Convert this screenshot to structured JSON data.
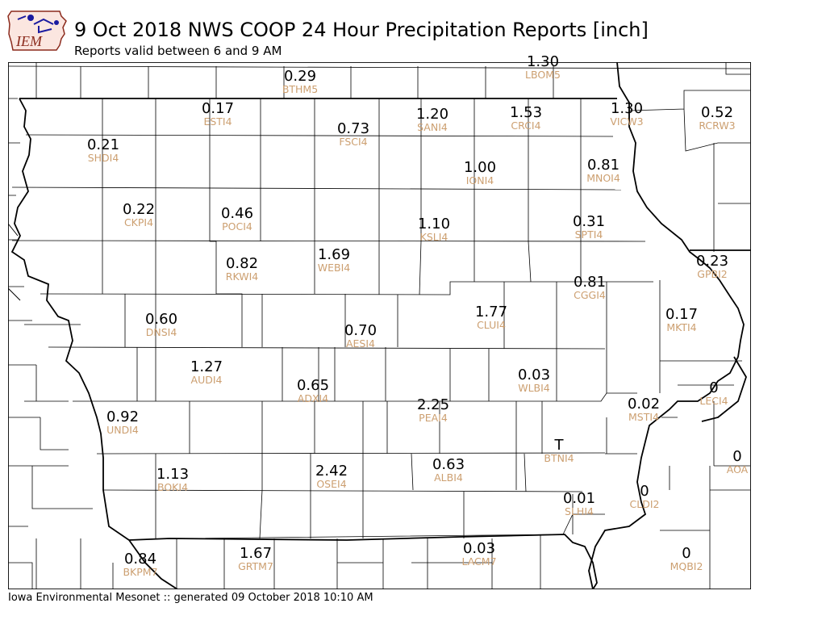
{
  "header": {
    "logo_text": "IEM",
    "title": "9 Oct 2018 NWS COOP 24 Hour Precipitation Reports [inch]",
    "subtitle": "Reports valid between 6 and 9 AM"
  },
  "footer": {
    "text": "Iowa Environmental Mesonet :: generated 09 October 2018 10:10 AM"
  },
  "colors": {
    "station_id": "#cc9f70",
    "value": "#000000",
    "border": "#000000",
    "logo_red": "#8b2a1c",
    "logo_blue": "#1a1aa0"
  },
  "stations": [
    {
      "id": "BTHM5",
      "value": "0.29"
    },
    {
      "id": "LBOM5",
      "value": "1.30"
    },
    {
      "id": "ESTI4",
      "value": "0.17"
    },
    {
      "id": "SANI4",
      "value": "1.20"
    },
    {
      "id": "CRCI4",
      "value": "1.53"
    },
    {
      "id": "VICW3",
      "value": "1.30"
    },
    {
      "id": "RCRW3",
      "value": "0.52"
    },
    {
      "id": "FSCI4",
      "value": "0.73"
    },
    {
      "id": "SHDI4",
      "value": "0.21"
    },
    {
      "id": "IONI4",
      "value": "1.00"
    },
    {
      "id": "MNOI4",
      "value": "0.81"
    },
    {
      "id": "CKPI4",
      "value": "0.22"
    },
    {
      "id": "POCI4",
      "value": "0.46"
    },
    {
      "id": "KSLI4",
      "value": "1.10"
    },
    {
      "id": "SPTI4",
      "value": "0.31"
    },
    {
      "id": "RKWI4",
      "value": "0.82"
    },
    {
      "id": "WEBI4",
      "value": "1.69"
    },
    {
      "id": "GPBI2",
      "value": "0.23"
    },
    {
      "id": "CGGI4",
      "value": "0.81"
    },
    {
      "id": "CLUI4",
      "value": "1.77"
    },
    {
      "id": "DNSI4",
      "value": "0.60"
    },
    {
      "id": "AESI4",
      "value": "0.70"
    },
    {
      "id": "MKTI4",
      "value": "0.17"
    },
    {
      "id": "AUDI4",
      "value": "1.27"
    },
    {
      "id": "ADXI4",
      "value": "0.65"
    },
    {
      "id": "WLBI4",
      "value": "0.03"
    },
    {
      "id": "LECI4",
      "value": "0"
    },
    {
      "id": "UNDI4",
      "value": "0.92"
    },
    {
      "id": "PEAI4",
      "value": "2.25"
    },
    {
      "id": "MSTI4",
      "value": "0.02"
    },
    {
      "id": "BTNI4",
      "value": "T"
    },
    {
      "id": "AOA",
      "value": "0"
    },
    {
      "id": "BOKI4",
      "value": "1.13"
    },
    {
      "id": "OSEI4",
      "value": "2.42"
    },
    {
      "id": "ALBI4",
      "value": "0.63"
    },
    {
      "id": "SLHI4",
      "value": "0.01"
    },
    {
      "id": "CLDI2",
      "value": "0"
    },
    {
      "id": "BKPM7",
      "value": "0.84"
    },
    {
      "id": "GRTM7",
      "value": "1.67"
    },
    {
      "id": "LACM7",
      "value": "0.03"
    },
    {
      "id": "MQBI2",
      "value": "0"
    }
  ]
}
